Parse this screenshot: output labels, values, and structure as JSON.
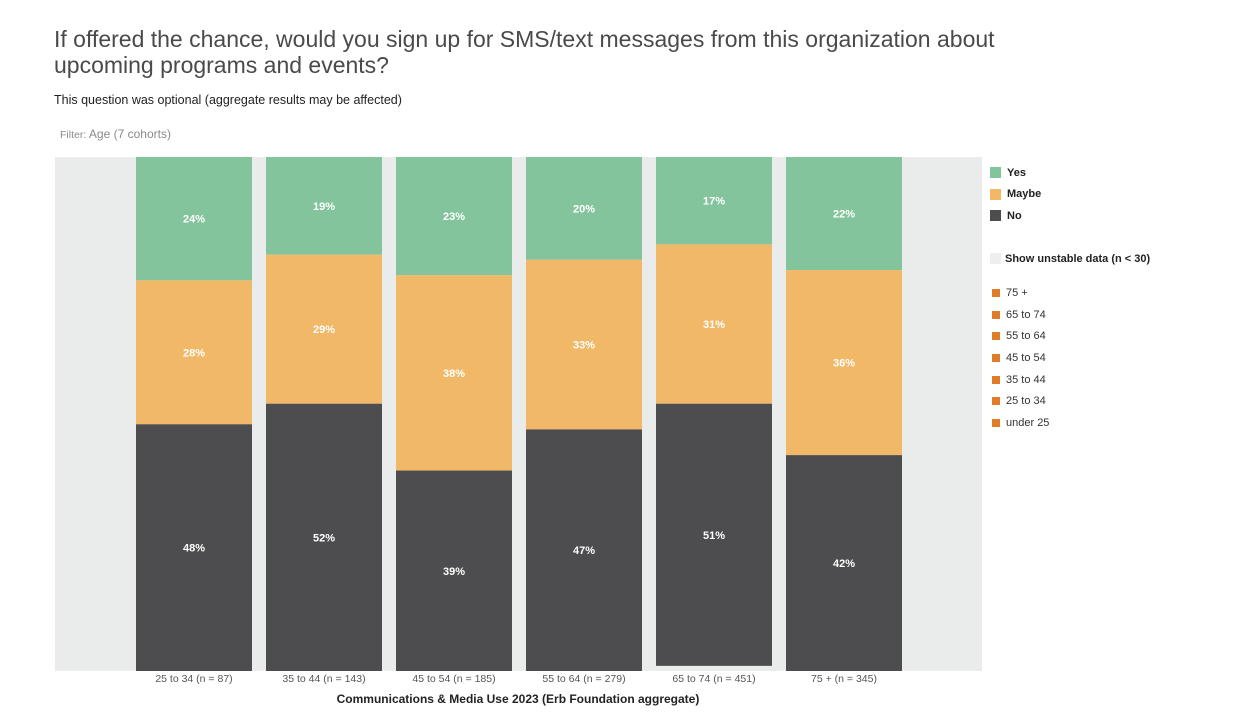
{
  "header": {
    "title": "If offered the chance, would you sign up for SMS/text messages from this organization about upcoming programs and events?",
    "subtitle": "This question was optional (aggregate results may be affected)",
    "filter_label": "Filter:",
    "filter_value": "Age (7 cohorts)"
  },
  "colors": {
    "yes": "#84c49c",
    "maybe": "#f1b868",
    "no": "#4d4d4f",
    "plot_bg": "#eaebeb",
    "cohort_marker": "#e07b2a"
  },
  "legend": {
    "series": [
      {
        "label": "Yes",
        "color": "#84c49c"
      },
      {
        "label": "Maybe",
        "color": "#f1b868"
      },
      {
        "label": "No",
        "color": "#4d4d4f"
      }
    ],
    "unstable_label": "Show unstable data (n < 30)",
    "cohorts": [
      "75 +",
      "65 to 74",
      "55 to 64",
      "45 to 54",
      "35 to 44",
      "25 to 34",
      "under 25"
    ]
  },
  "chart_data": {
    "type": "bar",
    "stacked": true,
    "normalized_to": 100,
    "categories": [
      "25 to 34 (n = 87)",
      "35 to 44 (n = 143)",
      "45 to 54 (n = 185)",
      "55 to 64 (n = 279)",
      "65 to 74 (n = 451)",
      "75 + (n = 345)"
    ],
    "series": [
      {
        "name": "Yes",
        "values": [
          24,
          19,
          23,
          20,
          17,
          22
        ],
        "labels": [
          "24%",
          "19%",
          "23%",
          "20%",
          "17%",
          "22%"
        ]
      },
      {
        "name": "Maybe",
        "values": [
          28,
          29,
          38,
          33,
          31,
          36
        ],
        "labels": [
          "28%",
          "29%",
          "38%",
          "33%",
          "31%",
          "36%"
        ]
      },
      {
        "name": "No",
        "values": [
          48,
          52,
          39,
          47,
          51,
          42
        ],
        "labels": [
          "48%",
          "52%",
          "39%",
          "47%",
          "51%",
          "42%"
        ]
      }
    ],
    "xlabel": "Communications & Media Use 2023 (Erb Foundation aggregate)",
    "ylim": [
      0,
      100
    ],
    "legend_position": "right"
  }
}
